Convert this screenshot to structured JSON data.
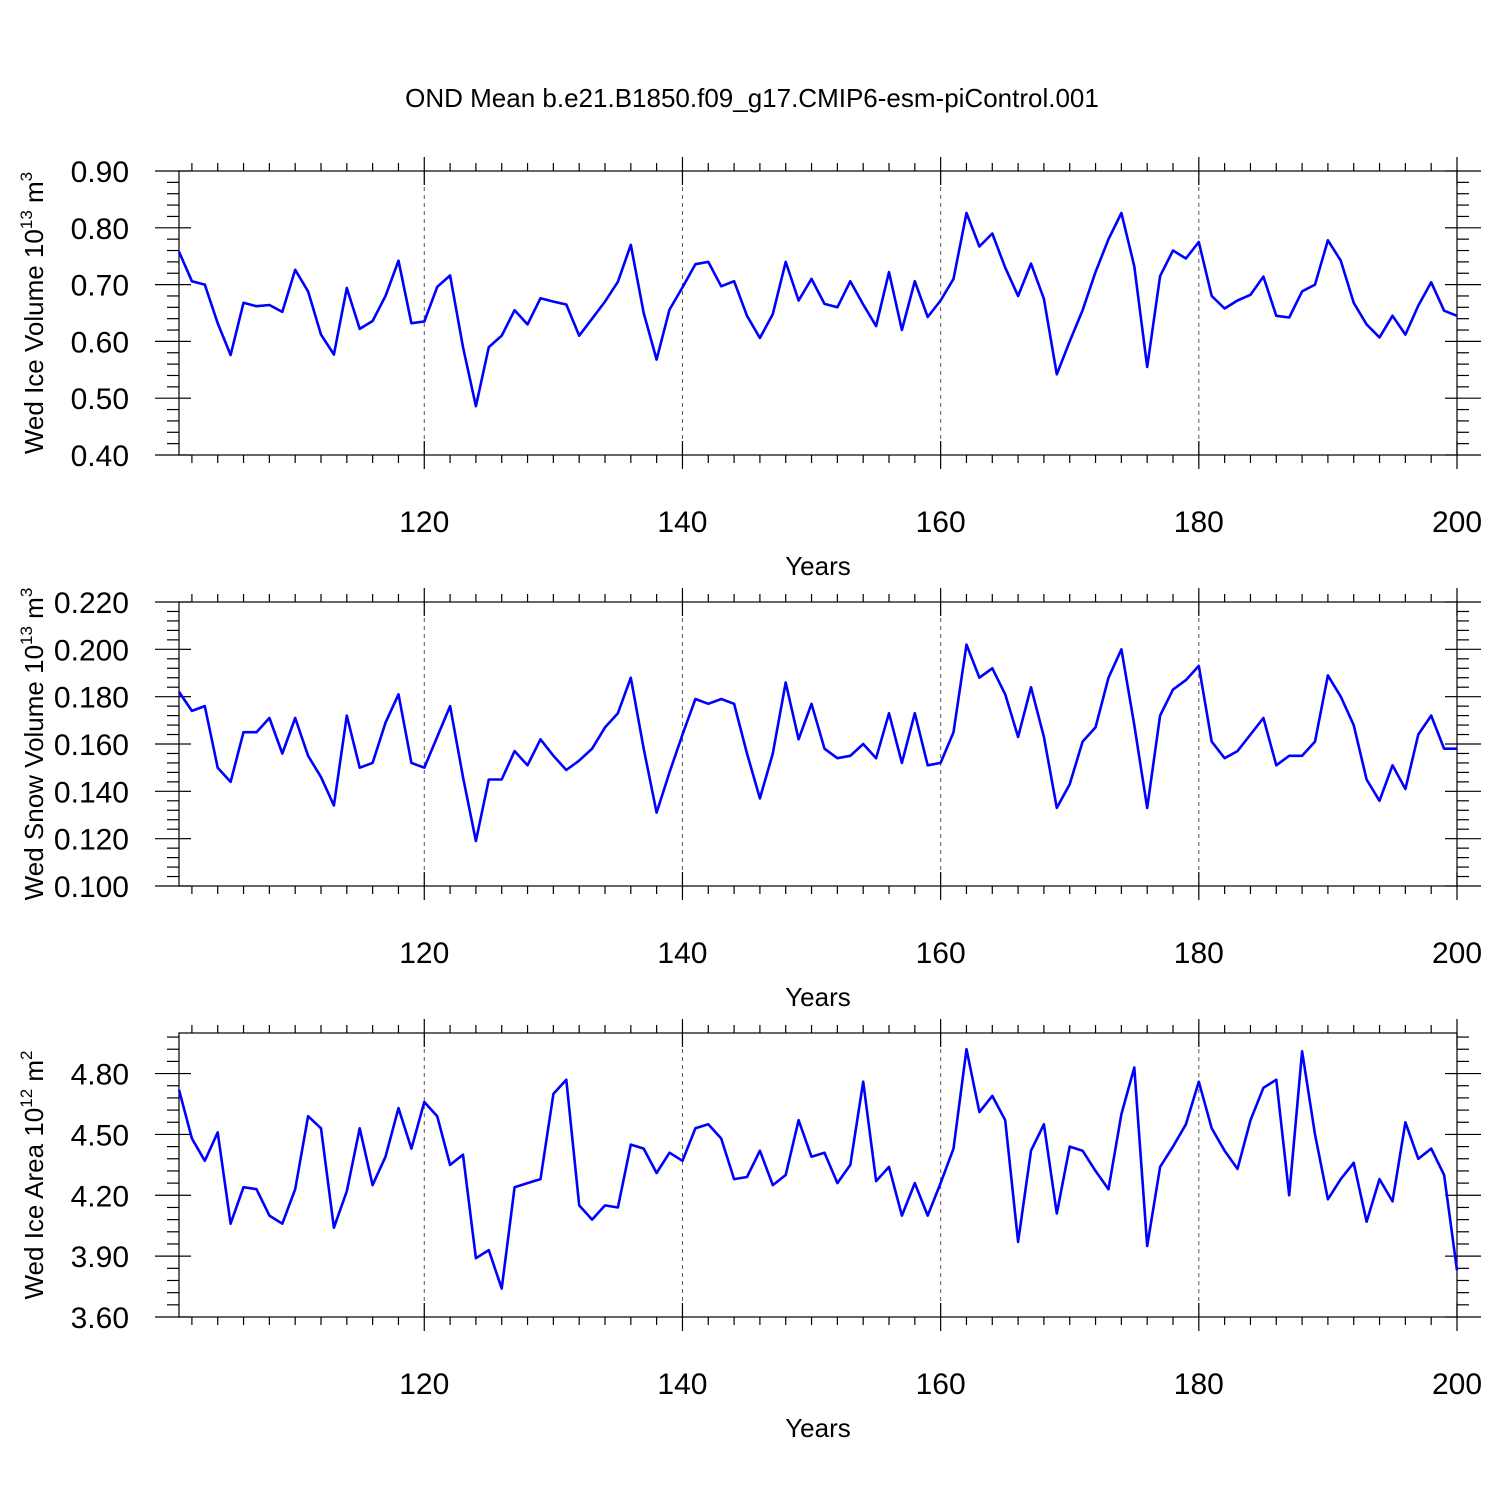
{
  "figure": {
    "title": "OND Mean b.e21.B1850.f09_g17.CMIP6-esm-piControl.001"
  },
  "chart_data": [
    {
      "type": "line",
      "ylabel": "Wed Ice Volume 10",
      "ylabel_exp": "13",
      "ylabel_unit": " m",
      "ylabel_unit_exp": "3",
      "xlabel": "Years",
      "xlim": [
        101,
        200
      ],
      "ylim": [
        0.4,
        0.9
      ],
      "xticks": [
        "120",
        "140",
        "160",
        "180",
        "200"
      ],
      "yticks": [
        "0.40",
        "0.50",
        "0.60",
        "0.70",
        "0.80",
        "0.90"
      ],
      "series": [
        {
          "name": "Wed Ice Volume",
          "color": "#0000ff",
          "values": [
            0.758,
            0.706,
            0.7,
            0.632,
            0.576,
            0.668,
            0.662,
            0.664,
            0.652,
            0.726,
            0.688,
            0.612,
            0.577,
            0.694,
            0.622,
            0.636,
            0.68,
            0.742,
            0.632,
            0.635,
            0.696,
            0.716,
            0.59,
            0.486,
            0.59,
            0.61,
            0.655,
            0.63,
            0.676,
            0.67,
            0.665,
            0.61,
            0.64,
            0.67,
            0.705,
            0.77,
            0.65,
            0.568,
            0.656,
            0.695,
            0.736,
            0.74,
            0.697,
            0.706,
            0.645,
            0.606,
            0.648,
            0.74,
            0.672,
            0.71,
            0.666,
            0.66,
            0.706,
            0.665,
            0.627,
            0.722,
            0.62,
            0.706,
            0.643,
            0.672,
            0.71,
            0.826,
            0.767,
            0.79,
            0.73,
            0.68,
            0.737,
            0.675,
            0.542,
            0.6,
            0.655,
            0.722,
            0.78,
            0.826,
            0.732,
            0.555,
            0.715,
            0.76,
            0.746,
            0.775,
            0.68,
            0.658,
            0.672,
            0.682,
            0.714,
            0.645,
            0.642,
            0.688,
            0.7,
            0.778,
            0.742,
            0.668,
            0.63,
            0.607,
            0.645,
            0.612,
            0.663,
            0.704,
            0.654,
            0.645
          ]
        }
      ]
    },
    {
      "type": "line",
      "ylabel": "Wed Snow Volume 10",
      "ylabel_exp": "13",
      "ylabel_unit": " m",
      "ylabel_unit_exp": "3",
      "xlabel": "Years",
      "xlim": [
        101,
        200
      ],
      "ylim": [
        0.1,
        0.22
      ],
      "xticks": [
        "120",
        "140",
        "160",
        "180",
        "200"
      ],
      "yticks": [
        "0.100",
        "0.120",
        "0.140",
        "0.160",
        "0.180",
        "0.200",
        "0.220"
      ],
      "series": [
        {
          "name": "Wed Snow Volume",
          "color": "#0000ff",
          "values": [
            0.182,
            0.174,
            0.176,
            0.15,
            0.144,
            0.165,
            0.165,
            0.171,
            0.156,
            0.171,
            0.155,
            0.146,
            0.134,
            0.172,
            0.15,
            0.152,
            0.169,
            0.181,
            0.152,
            0.15,
            0.163,
            0.176,
            0.146,
            0.119,
            0.145,
            0.145,
            0.157,
            0.151,
            0.162,
            0.155,
            0.149,
            0.153,
            0.158,
            0.167,
            0.173,
            0.188,
            0.158,
            0.131,
            0.148,
            0.164,
            0.179,
            0.177,
            0.179,
            0.177,
            0.156,
            0.137,
            0.156,
            0.186,
            0.162,
            0.177,
            0.158,
            0.154,
            0.155,
            0.16,
            0.154,
            0.173,
            0.152,
            0.173,
            0.151,
            0.152,
            0.165,
            0.202,
            0.188,
            0.192,
            0.181,
            0.163,
            0.184,
            0.163,
            0.133,
            0.143,
            0.161,
            0.167,
            0.188,
            0.2,
            0.168,
            0.133,
            0.172,
            0.183,
            0.187,
            0.193,
            0.161,
            0.154,
            0.157,
            0.164,
            0.171,
            0.151,
            0.155,
            0.155,
            0.161,
            0.189,
            0.18,
            0.168,
            0.145,
            0.136,
            0.151,
            0.141,
            0.164,
            0.172,
            0.158,
            0.158
          ]
        }
      ]
    },
    {
      "type": "line",
      "ylabel": "Wed Ice Area 10",
      "ylabel_exp": "12",
      "ylabel_unit": " m",
      "ylabel_unit_exp": "2",
      "xlabel": "Years",
      "xlim": [
        101,
        200
      ],
      "ylim": [
        3.6,
        5.0
      ],
      "xticks": [
        "120",
        "140",
        "160",
        "180",
        "200"
      ],
      "yticks": [
        "3.60",
        "3.90",
        "4.20",
        "4.50",
        "4.80"
      ],
      "series": [
        {
          "name": "Wed Ice Area",
          "color": "#0000ff",
          "values": [
            4.72,
            4.48,
            4.37,
            4.51,
            4.06,
            4.24,
            4.23,
            4.1,
            4.06,
            4.23,
            4.59,
            4.53,
            4.04,
            4.22,
            4.53,
            4.25,
            4.39,
            4.63,
            4.43,
            4.66,
            4.59,
            4.35,
            4.4,
            3.89,
            3.93,
            3.74,
            4.24,
            4.26,
            4.28,
            4.7,
            4.77,
            4.15,
            4.08,
            4.15,
            4.14,
            4.45,
            4.43,
            4.31,
            4.41,
            4.37,
            4.53,
            4.55,
            4.48,
            4.28,
            4.29,
            4.42,
            4.25,
            4.3,
            4.57,
            4.39,
            4.41,
            4.26,
            4.35,
            4.76,
            4.27,
            4.34,
            4.1,
            4.26,
            4.1,
            4.26,
            4.43,
            4.92,
            4.61,
            4.69,
            4.57,
            3.97,
            4.42,
            4.55,
            4.11,
            4.44,
            4.42,
            4.32,
            4.23,
            4.6,
            4.83,
            3.95,
            4.34,
            4.44,
            4.55,
            4.76,
            4.53,
            4.42,
            4.33,
            4.57,
            4.73,
            4.77,
            4.2,
            4.91,
            4.5,
            4.18,
            4.28,
            4.36,
            4.07,
            4.28,
            4.17,
            4.56,
            4.38,
            4.43,
            4.3,
            3.83
          ]
        }
      ]
    }
  ]
}
